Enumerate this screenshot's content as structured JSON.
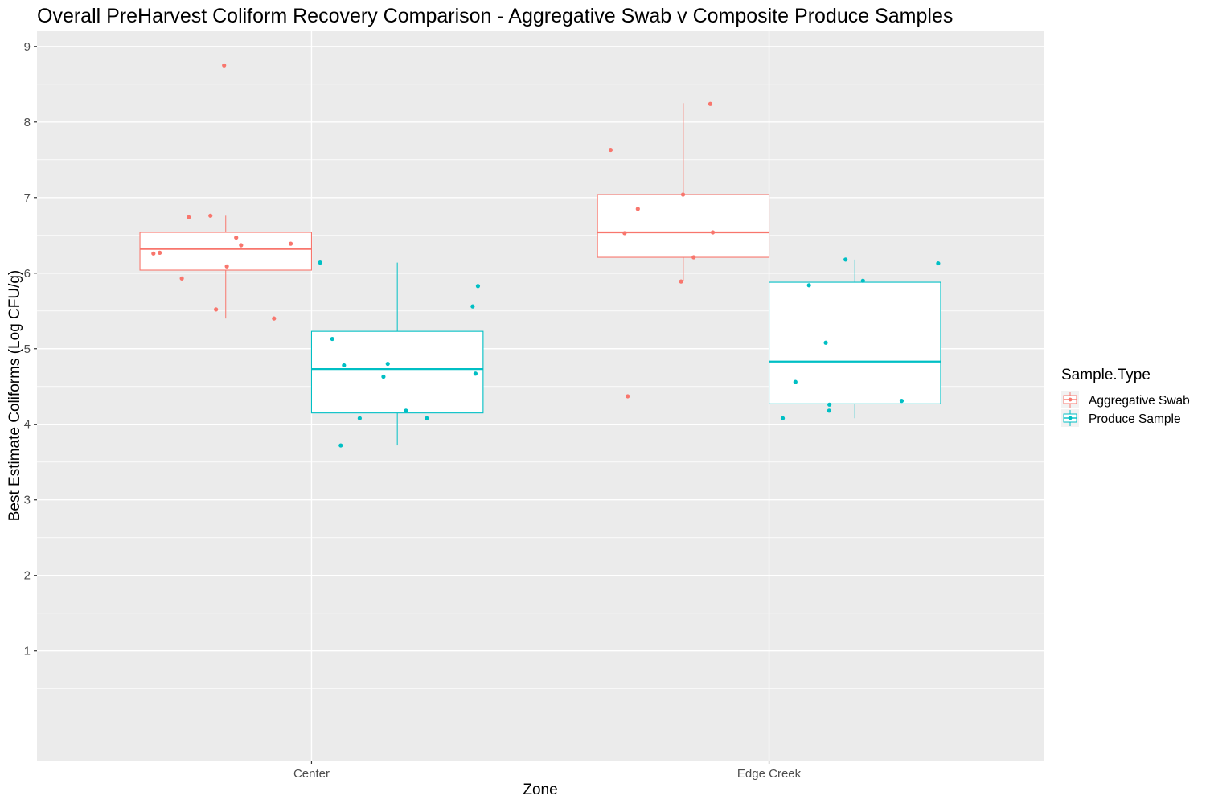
{
  "chart_data": {
    "type": "box",
    "title": "Overall PreHarvest Coliform Recovery Comparison - Aggregative Swab v Composite Produce Samples",
    "xlabel": "Zone",
    "ylabel": "Best Estimate Coliforms (Log CFU/g)",
    "categories": [
      "Center",
      "Edge Creek"
    ],
    "ylim": [
      -0.45,
      9.2
    ],
    "y_ticks": [
      1,
      2,
      3,
      4,
      5,
      6,
      7,
      8,
      9
    ],
    "y_tick_labels": [
      "1",
      "2",
      "3",
      "4",
      "5",
      "6",
      "7",
      "8",
      "9"
    ],
    "grid": true,
    "legend": {
      "title": "Sample.Type",
      "position": "right",
      "entries": [
        "Aggregative Swab",
        "Produce Sample"
      ]
    },
    "series": [
      {
        "name": "Aggregative Swab",
        "color": "#F8766D",
        "boxes": [
          {
            "category": "Center",
            "whisker_low": 5.4,
            "q1": 6.04,
            "median": 6.32,
            "q3": 6.54,
            "whisker_high": 6.76
          },
          {
            "category": "Edge Creek",
            "whisker_low": 5.9,
            "q1": 6.21,
            "median": 6.54,
            "q3": 7.04,
            "whisker_high": 8.25
          }
        ],
        "points": [
          {
            "category": "Center",
            "values": [
              8.75,
              6.47,
              6.27,
              5.93,
              5.52,
              6.09,
              6.26,
              6.39,
              6.37,
              6.76,
              6.74,
              5.4
            ]
          },
          {
            "category": "Edge Creek",
            "values": [
              8.24,
              7.63,
              7.04,
              6.85,
              6.54,
              6.53,
              6.21,
              5.89,
              4.37
            ]
          }
        ]
      },
      {
        "name": "Produce Sample",
        "color": "#00BFC4",
        "boxes": [
          {
            "category": "Center",
            "whisker_low": 3.72,
            "q1": 4.15,
            "median": 4.73,
            "q3": 5.23,
            "whisker_high": 6.14
          },
          {
            "category": "Edge Creek",
            "whisker_low": 4.08,
            "q1": 4.27,
            "median": 4.83,
            "q3": 5.88,
            "whisker_high": 6.18
          }
        ],
        "points": [
          {
            "category": "Center",
            "values": [
              6.14,
              5.56,
              5.83,
              5.13,
              4.8,
              4.67,
              4.78,
              4.63,
              4.18,
              4.08,
              4.08,
              3.72
            ]
          },
          {
            "category": "Edge Creek",
            "values": [
              6.13,
              6.18,
              5.84,
              5.9,
              5.08,
              4.56,
              4.31,
              4.26,
              4.18,
              4.08
            ]
          }
        ]
      }
    ]
  }
}
